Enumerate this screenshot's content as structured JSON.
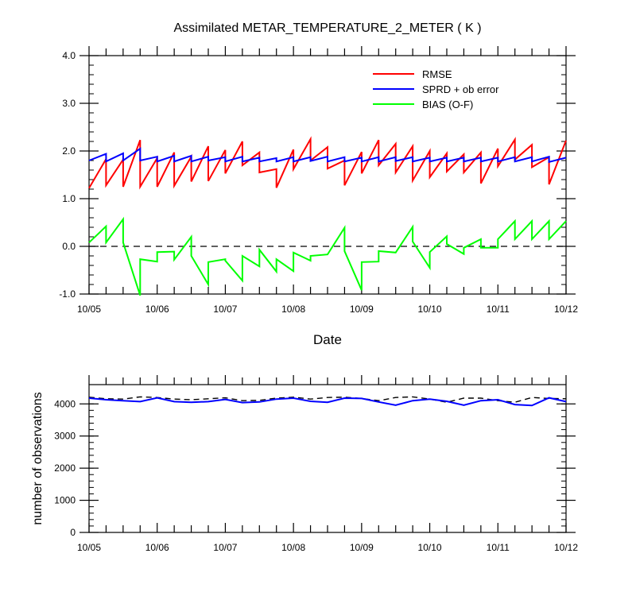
{
  "chart_data": [
    {
      "type": "line",
      "title": "Assimilated METAR_TEMPERATURE_2_METER ( K )",
      "xlabel": "Date",
      "ylabel": "",
      "x_tick_labels": [
        "10/05",
        "10/06",
        "10/07",
        "10/08",
        "10/09",
        "10/10",
        "10/11",
        "10/12"
      ],
      "y_tick_labels": [
        "4.0",
        "3.0",
        "2.0",
        "1.0",
        "0.0",
        "-1.0"
      ],
      "xlim": [
        0,
        7
      ],
      "ylim": [
        -1.0,
        4.0
      ],
      "zero_line": true,
      "legend_position": "top-right",
      "colors": {
        "RMSE": "#ff0000",
        "SPRD + ob error": "#0000ff",
        "BIAS (O-F)": "#00ff00"
      },
      "series": [
        {
          "name": "RMSE",
          "x": [
            0,
            0.25,
            0.25,
            0.5,
            0.5,
            0.75,
            0.75,
            1,
            1,
            1.25,
            1.25,
            1.5,
            1.5,
            1.75,
            1.75,
            2,
            2,
            2.25,
            2.25,
            2.5,
            2.5,
            2.75,
            2.75,
            3,
            3,
            3.25,
            3.25,
            3.5,
            3.5,
            3.75,
            3.75,
            4,
            4,
            4.25,
            4.25,
            4.5,
            4.5,
            4.75,
            4.75,
            5,
            5,
            5.25,
            5.25,
            5.5,
            5.5,
            5.75,
            5.75,
            6,
            6,
            6.25,
            6.25,
            6.5,
            6.5,
            6.75,
            6.75,
            7
          ],
          "values": [
            1.22,
            1.83,
            1.28,
            1.82,
            1.25,
            2.23,
            1.25,
            1.85,
            1.25,
            1.97,
            1.27,
            1.88,
            1.36,
            2.1,
            1.37,
            2.02,
            1.53,
            2.2,
            1.7,
            1.97,
            1.55,
            1.62,
            1.23,
            2.03,
            1.62,
            2.25,
            1.8,
            2.08,
            1.63,
            1.8,
            1.28,
            1.98,
            1.53,
            2.23,
            1.7,
            2.15,
            1.55,
            2.1,
            1.38,
            2.0,
            1.45,
            1.95,
            1.57,
            1.93,
            1.55,
            1.97,
            1.32,
            2.05,
            1.68,
            2.24,
            1.82,
            2.13,
            1.66,
            1.87,
            1.3,
            2.22
          ]
        },
        {
          "name": "SPRD + ob error",
          "x": [
            0,
            0.25,
            0.25,
            0.5,
            0.5,
            0.75,
            0.75,
            1,
            1,
            1.25,
            1.25,
            1.5,
            1.5,
            1.75,
            1.75,
            2,
            2,
            2.25,
            2.25,
            2.5,
            2.5,
            2.75,
            2.75,
            3,
            3,
            3.25,
            3.25,
            3.5,
            3.5,
            3.75,
            3.75,
            4,
            4,
            4.25,
            4.25,
            4.5,
            4.5,
            4.75,
            4.75,
            5,
            5,
            5.25,
            5.25,
            5.5,
            5.5,
            5.75,
            5.75,
            6,
            6,
            6.25,
            6.25,
            6.5,
            6.5,
            6.75,
            6.75,
            7
          ],
          "values": [
            1.8,
            1.94,
            1.78,
            1.95,
            1.8,
            2.05,
            1.8,
            1.88,
            1.78,
            1.9,
            1.78,
            1.9,
            1.78,
            1.88,
            1.8,
            1.87,
            1.78,
            1.88,
            1.78,
            1.86,
            1.78,
            1.85,
            1.78,
            1.87,
            1.78,
            1.87,
            1.79,
            1.88,
            1.78,
            1.87,
            1.78,
            1.86,
            1.78,
            1.87,
            1.78,
            1.87,
            1.79,
            1.87,
            1.78,
            1.86,
            1.78,
            1.86,
            1.78,
            1.86,
            1.78,
            1.86,
            1.78,
            1.86,
            1.78,
            1.87,
            1.78,
            1.87,
            1.78,
            1.88,
            1.77,
            1.86
          ]
        },
        {
          "name": "BIAS (O-F)",
          "x": [
            0,
            0.25,
            0.25,
            0.5,
            0.5,
            0.75,
            0.75,
            1,
            1,
            1.25,
            1.25,
            1.5,
            1.5,
            1.75,
            1.75,
            2,
            2,
            2.25,
            2.25,
            2.5,
            2.5,
            2.75,
            2.75,
            3,
            3,
            3.25,
            3.25,
            3.5,
            3.5,
            3.75,
            3.75,
            4,
            4,
            4.25,
            4.25,
            4.5,
            4.5,
            4.75,
            4.75,
            5,
            5,
            5.25,
            5.25,
            5.5,
            5.5,
            5.75,
            5.75,
            6,
            6,
            6.25,
            6.25,
            6.5,
            6.5,
            6.75,
            6.75,
            7
          ],
          "values": [
            0.08,
            0.42,
            0.08,
            0.57,
            0.08,
            -1.03,
            -0.27,
            -0.32,
            -0.12,
            -0.11,
            -0.28,
            0.2,
            -0.2,
            -0.8,
            -0.33,
            -0.27,
            -0.3,
            -0.72,
            -0.2,
            -0.42,
            -0.07,
            -0.53,
            -0.27,
            -0.52,
            -0.13,
            -0.3,
            -0.2,
            -0.17,
            -0.17,
            0.39,
            -0.1,
            -0.92,
            -0.33,
            -0.32,
            -0.1,
            -0.13,
            -0.13,
            0.41,
            0.1,
            -0.45,
            -0.12,
            0.21,
            0.05,
            -0.16,
            -0.03,
            0.15,
            -0.03,
            -0.03,
            0.15,
            0.53,
            0.15,
            0.53,
            0.15,
            0.53,
            0.15,
            0.53
          ]
        }
      ]
    },
    {
      "type": "line",
      "title": "",
      "xlabel": "",
      "ylabel": "number of observations",
      "x_tick_labels": [
        "10/05",
        "10/06",
        "10/07",
        "10/08",
        "10/09",
        "10/10",
        "10/11",
        "10/12"
      ],
      "y_tick_labels": [
        "4000",
        "3000",
        "2000",
        "1000",
        "0"
      ],
      "xlim": [
        0,
        7
      ],
      "ylim": [
        0,
        4600
      ],
      "series": [
        {
          "style": "dashed",
          "color": "#000000",
          "x": [
            0,
            0.25,
            0.5,
            0.75,
            1,
            1.25,
            1.5,
            1.75,
            2,
            2.25,
            2.5,
            2.75,
            3,
            3.25,
            3.5,
            3.75,
            4,
            4.25,
            4.5,
            4.75,
            5,
            5.25,
            5.5,
            5.75,
            6,
            6.25,
            6.5,
            6.75,
            7
          ],
          "values": [
            4210,
            4160,
            4150,
            4220,
            4200,
            4150,
            4130,
            4160,
            4190,
            4100,
            4110,
            4180,
            4210,
            4150,
            4200,
            4210,
            4170,
            4100,
            4200,
            4220,
            4150,
            4050,
            4180,
            4180,
            4100,
            4050,
            4200,
            4170,
            4160
          ]
        },
        {
          "style": "solid",
          "color": "#0000ff",
          "x": [
            0,
            0.25,
            0.5,
            0.75,
            1,
            1.25,
            1.5,
            1.75,
            2,
            2.25,
            2.5,
            2.75,
            3,
            3.25,
            3.5,
            3.75,
            4,
            4.25,
            4.5,
            4.75,
            5,
            5.25,
            5.5,
            5.75,
            6,
            6.25,
            6.5,
            6.75,
            7
          ],
          "values": [
            4180,
            4130,
            4100,
            4070,
            4190,
            4070,
            4050,
            4070,
            4140,
            4040,
            4060,
            4150,
            4180,
            4080,
            4050,
            4180,
            4170,
            4060,
            3960,
            4100,
            4150,
            4080,
            3960,
            4100,
            4130,
            3980,
            3950,
            4190,
            4070
          ]
        }
      ]
    }
  ]
}
